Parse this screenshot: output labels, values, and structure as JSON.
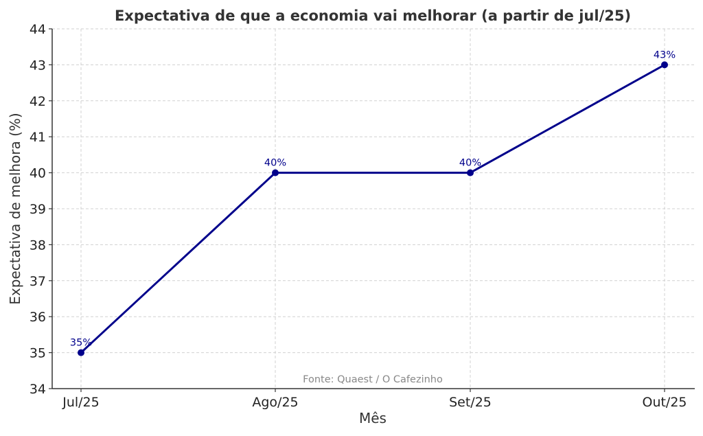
{
  "chart_data": {
    "type": "line",
    "title": "Expectativa de que a economia vai melhorar (a partir de jul/25)",
    "xlabel": "Mês",
    "ylabel": "Expectativa de melhora (%)",
    "categories": [
      "Jul/25",
      "Ago/25",
      "Set/25",
      "Out/25"
    ],
    "values": [
      35,
      40,
      40,
      43
    ],
    "data_labels": [
      "35%",
      "40%",
      "40%",
      "43%"
    ],
    "ylim": [
      34,
      44
    ],
    "yticks": [
      34,
      35,
      36,
      37,
      38,
      39,
      40,
      41,
      42,
      43,
      44
    ],
    "grid": true,
    "annotation": "Fonte: Quaest / O Cafezinho",
    "colors": {
      "line": "#00008b",
      "grid": "#d0d0d0",
      "axis": "#333333"
    }
  }
}
